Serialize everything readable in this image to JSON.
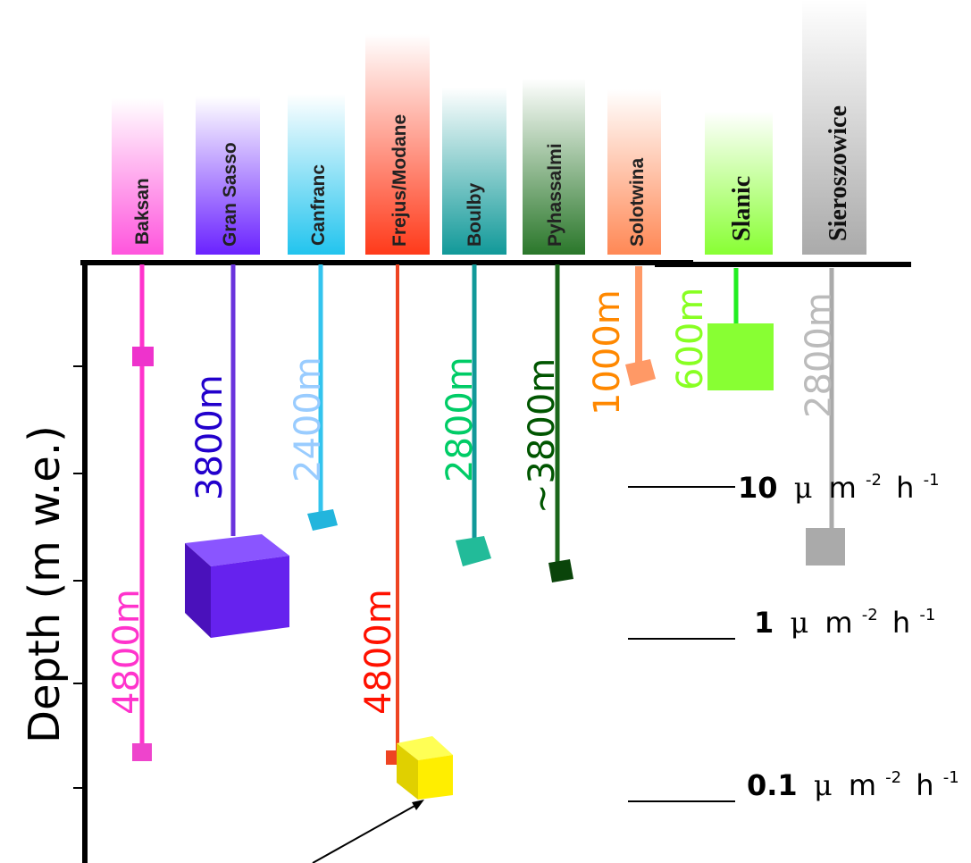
{
  "axis": {
    "label": "Depth (m w.e.)"
  },
  "labs": [
    {
      "name": "Baksan",
      "depth": "4800m",
      "color": "#ff33cc",
      "header_color": "#ff66dd"
    },
    {
      "name": "Gran Sasso",
      "depth": "3800m",
      "color": "#2200cc",
      "header_color": "#7a33ff"
    },
    {
      "name": "Canfranc",
      "depth": "2400m",
      "color": "#99ccff",
      "header_color": "#33c4ee"
    },
    {
      "name": "Frejus/Modane",
      "depth": "4800m",
      "color": "#ff1100",
      "header_color": "#ff4422"
    },
    {
      "name": "Boulby",
      "depth": "2800m",
      "color": "#00cc66",
      "header_color": "#22aaaa"
    },
    {
      "name": "Pyhassalmi",
      "depth": "~3800m",
      "color": "#005500",
      "header_color": "#2e7d2e"
    },
    {
      "name": "Solotwina",
      "depth": "1000m",
      "color": "#ff8800",
      "header_color": "#ff9966"
    },
    {
      "name": "Slanic",
      "depth": "600m",
      "color": "#88ff22",
      "header_color": "#88ff33"
    },
    {
      "name": "Sieroszowice",
      "depth": "2800m",
      "color": "#bbbbbb",
      "header_color": "#aaaaaa"
    }
  ],
  "flux_levels": [
    {
      "value": "10",
      "mu": "μ",
      "unit": "m",
      "exp1": "-2",
      "unit2": "h",
      "exp2": "-1"
    },
    {
      "value": "1",
      "mu": "μ",
      "unit": "m",
      "exp1": "-2",
      "unit2": "h",
      "exp2": "-1"
    },
    {
      "value": "0.1",
      "mu": "μ",
      "unit": "m",
      "exp1": "-2",
      "unit2": "h",
      "exp2": "-1"
    }
  ]
}
